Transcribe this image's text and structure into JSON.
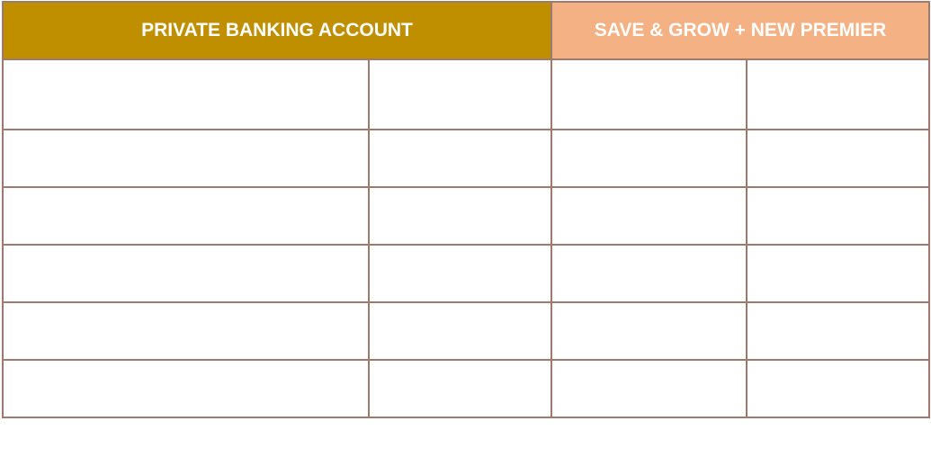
{
  "table": {
    "headers": [
      {
        "label": "PRIVATE BANKING ACCOUNT",
        "color": "#bf8f00"
      },
      {
        "label": "SAVE & GROW + NEW PREMIER",
        "color": "#f4b183"
      }
    ],
    "rows": [
      [
        "",
        "",
        "",
        ""
      ],
      [
        "",
        "",
        "",
        ""
      ],
      [
        "",
        "",
        "",
        ""
      ],
      [
        "",
        "",
        "",
        ""
      ],
      [
        "",
        "",
        "",
        ""
      ],
      [
        "",
        "",
        "",
        ""
      ]
    ],
    "border_color": "#9c7b6e"
  }
}
